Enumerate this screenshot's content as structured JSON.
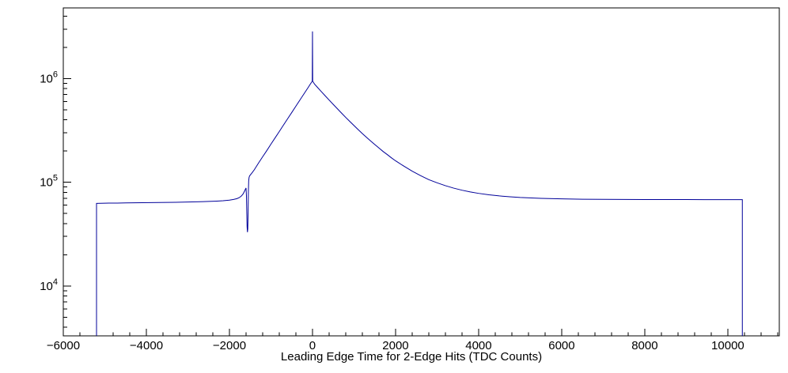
{
  "window": {
    "background": "#ffffff"
  },
  "chart_data": {
    "type": "line",
    "title": "",
    "xlabel": "Leading Edge Time for 2-Edge Hits (TDC Counts)",
    "ylabel": "",
    "grid": false,
    "legend_position": "none",
    "line_color": "#000099",
    "axis_color": "#000000",
    "x_axis": {
      "min": -6000,
      "max": 11240,
      "minor_step": 400,
      "major_ticks": [
        {
          "value": -6000,
          "label": "−6000"
        },
        {
          "value": -4000,
          "label": "−4000"
        },
        {
          "value": -2000,
          "label": "−2000"
        },
        {
          "value": 0,
          "label": "0"
        },
        {
          "value": 2000,
          "label": "2000"
        },
        {
          "value": 4000,
          "label": "4000"
        },
        {
          "value": 6000,
          "label": "6000"
        },
        {
          "value": 8000,
          "label": "8000"
        },
        {
          "value": 10000,
          "label": "10000"
        }
      ]
    },
    "y_axis": {
      "scale": "log",
      "min": 3300,
      "max": 4800000,
      "major_ticks": [
        {
          "value": 10000,
          "base": "10",
          "exp": "4"
        },
        {
          "value": 100000,
          "base": "10",
          "exp": "5"
        },
        {
          "value": 1000000,
          "base": "10",
          "exp": "6"
        }
      ]
    },
    "points": [
      [
        -5200,
        3300
      ],
      [
        -5200,
        62500
      ],
      [
        -5100,
        62700
      ],
      [
        -4900,
        62900
      ],
      [
        -4700,
        63000
      ],
      [
        -4500,
        63200
      ],
      [
        -4300,
        63300
      ],
      [
        -4100,
        63500
      ],
      [
        -3900,
        63600
      ],
      [
        -3700,
        63800
      ],
      [
        -3500,
        63900
      ],
      [
        -3300,
        64100
      ],
      [
        -3100,
        64300
      ],
      [
        -2900,
        64600
      ],
      [
        -2700,
        64900
      ],
      [
        -2500,
        65300
      ],
      [
        -2300,
        65800
      ],
      [
        -2150,
        66300
      ],
      [
        -2000,
        67200
      ],
      [
        -1900,
        68200
      ],
      [
        -1820,
        69500
      ],
      [
        -1760,
        71200
      ],
      [
        -1710,
        73800
      ],
      [
        -1670,
        77200
      ],
      [
        -1640,
        81500
      ],
      [
        -1615,
        85500
      ],
      [
        -1600,
        88000
      ],
      [
        -1590,
        74000
      ],
      [
        -1582,
        50000
      ],
      [
        -1574,
        37000
      ],
      [
        -1566,
        33000
      ],
      [
        -1558,
        35500
      ],
      [
        -1550,
        52000
      ],
      [
        -1543,
        82000
      ],
      [
        -1536,
        103000
      ],
      [
        -1527,
        111000
      ],
      [
        -1515,
        115000
      ],
      [
        -1450,
        124000
      ],
      [
        -1400,
        132000
      ],
      [
        -1300,
        153000
      ],
      [
        -1200,
        176000
      ],
      [
        -1100,
        202000
      ],
      [
        -1000,
        233000
      ],
      [
        -900,
        268000
      ],
      [
        -800,
        308000
      ],
      [
        -700,
        355000
      ],
      [
        -600,
        409000
      ],
      [
        -500,
        470000
      ],
      [
        -400,
        541000
      ],
      [
        -300,
        623000
      ],
      [
        -200,
        717000
      ],
      [
        -100,
        825000
      ],
      [
        -50,
        886000
      ],
      [
        -20,
        924000
      ],
      [
        -5,
        943000
      ],
      [
        0,
        2850000
      ],
      [
        5,
        943000
      ],
      [
        50,
        883000
      ],
      [
        100,
        839000
      ],
      [
        200,
        758000
      ],
      [
        300,
        686000
      ],
      [
        400,
        621000
      ],
      [
        500,
        563000
      ],
      [
        600,
        511000
      ],
      [
        700,
        464000
      ],
      [
        800,
        422000
      ],
      [
        900,
        385000
      ],
      [
        1000,
        352000
      ],
      [
        1100,
        322000
      ],
      [
        1200,
        295000
      ],
      [
        1300,
        271000
      ],
      [
        1400,
        250000
      ],
      [
        1500,
        231000
      ],
      [
        1600,
        214000
      ],
      [
        1700,
        198000
      ],
      [
        1800,
        185000
      ],
      [
        1900,
        172000
      ],
      [
        2000,
        161000
      ],
      [
        2200,
        143000
      ],
      [
        2400,
        128000
      ],
      [
        2600,
        116000
      ],
      [
        2800,
        106000
      ],
      [
        3000,
        98800
      ],
      [
        3200,
        92700
      ],
      [
        3400,
        87700
      ],
      [
        3600,
        83800
      ],
      [
        3800,
        80700
      ],
      [
        4000,
        78100
      ],
      [
        4250,
        75700
      ],
      [
        4500,
        73800
      ],
      [
        4750,
        72400
      ],
      [
        5000,
        71300
      ],
      [
        5500,
        69900
      ],
      [
        6000,
        69100
      ],
      [
        6500,
        68600
      ],
      [
        7000,
        68400
      ],
      [
        7500,
        68200
      ],
      [
        8000,
        68100
      ],
      [
        8500,
        68050
      ],
      [
        9000,
        68050
      ],
      [
        9500,
        68000
      ],
      [
        10000,
        68000
      ],
      [
        10350,
        68000
      ],
      [
        10350,
        3300
      ]
    ]
  }
}
